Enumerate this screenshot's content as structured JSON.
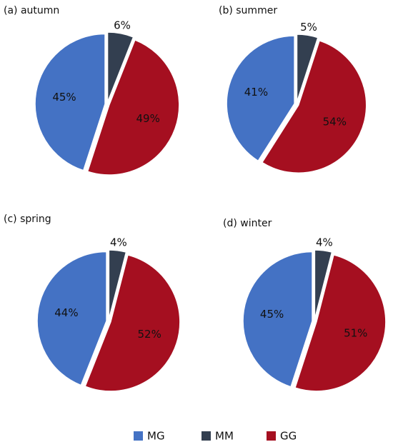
{
  "chart_data": [
    {
      "type": "pie",
      "title": "(a) autumn",
      "categories": [
        "MG",
        "MM",
        "GG"
      ],
      "colors": [
        "#4472c4",
        "#333f50",
        "#a50f20"
      ],
      "values": [
        45,
        6,
        49
      ],
      "value_labels": [
        "45%",
        "6%",
        "49%"
      ]
    },
    {
      "type": "pie",
      "title": "(b) summer",
      "categories": [
        "MG",
        "MM",
        "GG"
      ],
      "colors": [
        "#4472c4",
        "#333f50",
        "#a50f20"
      ],
      "values": [
        41,
        5,
        54
      ],
      "value_labels": [
        "41%",
        "5%",
        "54%"
      ]
    },
    {
      "type": "pie",
      "title": "(c) spring",
      "categories": [
        "MG",
        "MM",
        "GG"
      ],
      "colors": [
        "#4472c4",
        "#333f50",
        "#a50f20"
      ],
      "values": [
        44,
        4,
        52
      ],
      "value_labels": [
        "44%",
        "4%",
        "52%"
      ]
    },
    {
      "type": "pie",
      "title": "(d) winter",
      "categories": [
        "MG",
        "MM",
        "GG"
      ],
      "colors": [
        "#4472c4",
        "#333f50",
        "#a50f20"
      ],
      "values": [
        45,
        4,
        51
      ],
      "value_labels": [
        "45%",
        "4%",
        "51%"
      ]
    }
  ]
}
